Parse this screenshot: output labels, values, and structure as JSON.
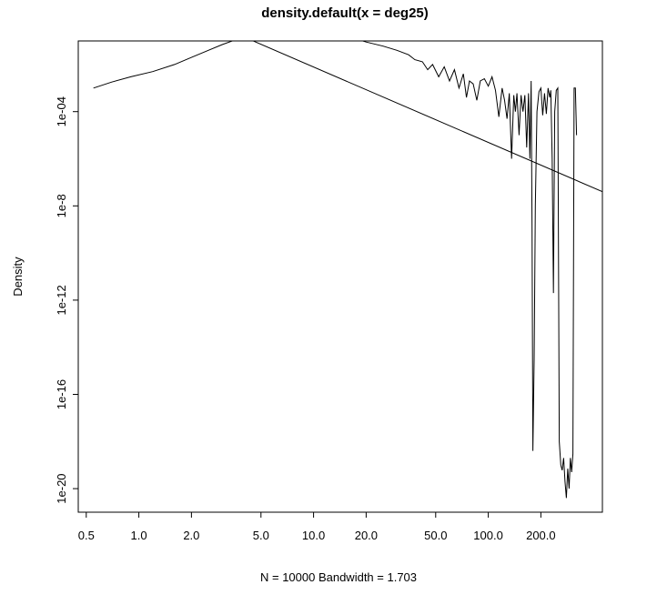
{
  "chart_data": {
    "type": "line",
    "title": "density.default(x = deg25)",
    "xlabel": "N = 10000   Bandwidth = 1.703",
    "ylabel": "Density",
    "x_scale": "log",
    "y_scale": "log",
    "xlim": [
      0.45,
      450
    ],
    "ylim": [
      1e-21,
      0.1
    ],
    "x_ticks": [
      0.5,
      1,
      2,
      5,
      10,
      20,
      50,
      100,
      200
    ],
    "x_tick_labels": [
      "0.5",
      "1.0",
      "2.0",
      "5.0",
      "10.0",
      "20.0",
      "50.0",
      "100.0",
      "200.0"
    ],
    "y_ticks": [
      1e-20,
      1e-16,
      1e-12,
      1e-08,
      0.0001
    ],
    "y_tick_labels": [
      "1e-20",
      "1e-16",
      "1e-12",
      "1e-8",
      "1e-04"
    ],
    "series": [
      {
        "type": "line",
        "x": [
          0.55,
          0.7,
          0.9,
          1.2,
          1.6,
          2.0,
          2.5,
          3.0,
          4.0,
          5.0,
          6.0,
          7.0,
          8.0,
          10.0,
          13.0,
          16.0,
          20.0,
          25.0,
          30.0,
          35.0,
          38.0,
          42.0,
          45.0,
          48.0,
          52.0,
          56.0,
          60.0,
          64.0,
          68.0,
          72.0,
          75.0,
          78.0,
          82.0,
          86.0,
          90.0,
          95.0,
          100.0,
          105.0,
          110.0,
          115.0,
          120.0,
          124.0,
          128.0,
          132.0,
          136.0,
          140.0,
          143.0,
          146.0,
          150.0,
          154.0,
          158.0,
          162.0,
          166.0,
          170.0,
          173.0,
          176.0,
          178.0,
          180.0,
          183.0,
          186.0,
          190.0,
          195.0,
          200.0,
          205.0,
          210.0,
          215.0,
          220.0,
          225.0,
          228.0,
          232.0,
          236.0,
          240.0,
          245.0,
          250.0,
          255.0,
          260.0,
          265.0,
          270.0,
          275.0,
          280.0,
          285.0,
          290.0,
          295.0,
          300.0,
          305.0,
          310.0,
          315.0,
          320.0
        ],
        "y": [
          0.001,
          0.0018,
          0.003,
          0.005,
          0.01,
          0.02,
          0.04,
          0.07,
          0.15,
          0.24,
          0.31,
          0.35,
          0.34,
          0.29,
          0.21,
          0.15,
          0.09,
          0.06,
          0.04,
          0.026,
          0.016,
          0.013,
          0.006,
          0.01,
          0.003,
          0.008,
          0.002,
          0.006,
          0.001,
          0.004,
          0.0004,
          0.002,
          0.0015,
          0.0003,
          0.002,
          0.0025,
          0.0012,
          0.003,
          0.0008,
          6e-05,
          0.001,
          0.0003,
          5e-05,
          0.0006,
          1e-06,
          0.0005,
          0.0001,
          0.0006,
          1e-05,
          0.0005,
          0.0001,
          0.0005,
          3e-06,
          0.0006,
          1e-06,
          0.002,
          1e-09,
          4e-19,
          3e-15,
          1e-08,
          0.0001,
          0.0007,
          0.001,
          7e-05,
          0.0006,
          8e-05,
          0.001,
          0.0004,
          0.0008,
          1e-06,
          2e-12,
          0.0001,
          0.0008,
          0.001,
          1e-18,
          1e-19,
          6e-20,
          2e-19,
          2e-20,
          4e-21,
          7e-20,
          1e-20,
          2e-19,
          5e-20,
          3e-19,
          0.001,
          0.001,
          1e-05
        ]
      },
      {
        "type": "line",
        "x": [
          2.2,
          450
        ],
        "y": [
          1.0,
          4e-08
        ]
      }
    ]
  }
}
